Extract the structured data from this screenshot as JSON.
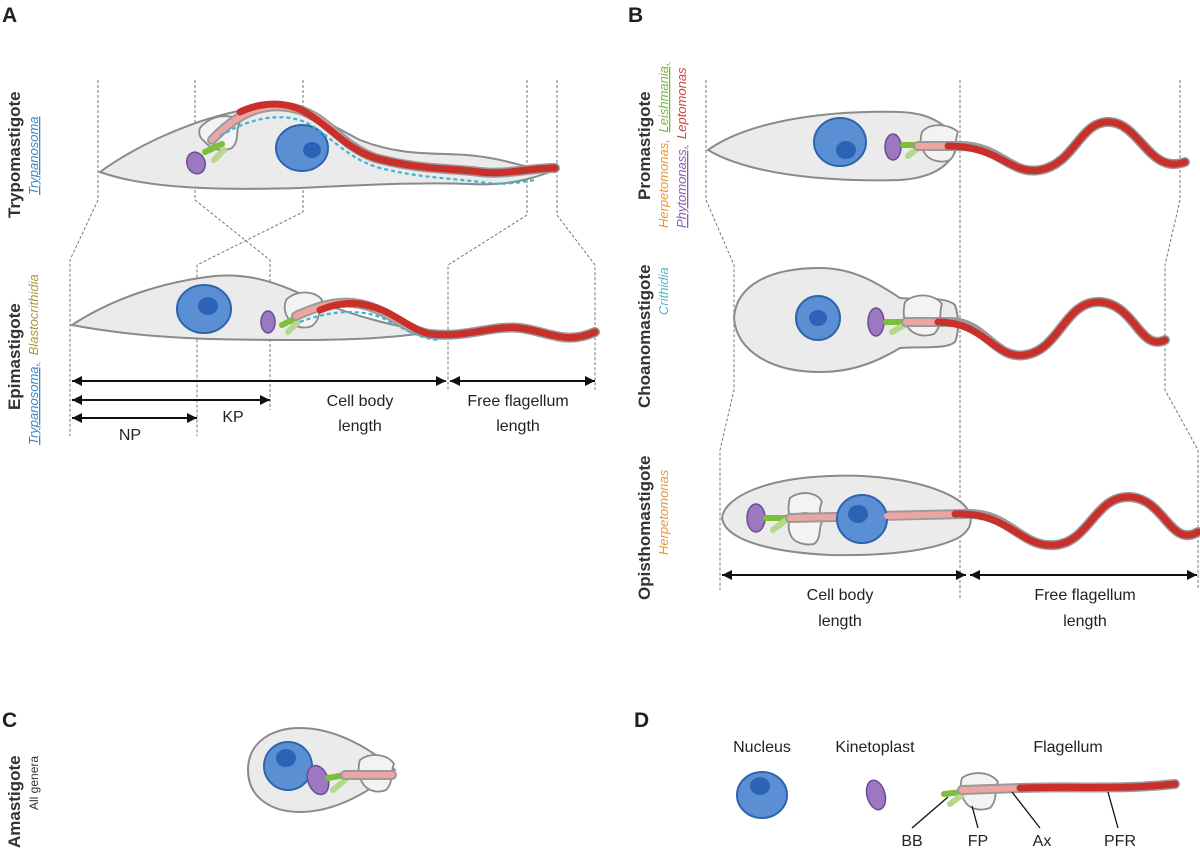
{
  "panels": {
    "a": "A",
    "b": "B",
    "c": "C",
    "d": "D"
  },
  "cells": {
    "trypomastigote": {
      "name": "Trypomastigote",
      "genus": "Trypanosoma"
    },
    "epimastigote": {
      "name": "Epimastigote",
      "genus1": "Trypanosoma,",
      "genus2": "Blastocrithidia"
    },
    "promastigote": {
      "name": "Promastigote",
      "line1_a": "Herpetomonas,",
      "line1_b": "Leishmania,",
      "line2_a": "Phytomonass,",
      "line2_b": "Leptomonas"
    },
    "choanomastigote": {
      "name": "Choanomastigote",
      "genus": "Crithidia"
    },
    "opisthomastigote": {
      "name": "Opisthomastigote",
      "genus": "Herpetomonas"
    },
    "amastigote": {
      "name": "Amastigote",
      "genus": "All genera"
    }
  },
  "measure_a": {
    "cell_body_1": "Cell body",
    "cell_body_2": "length",
    "free_flag_1": "Free flagellum",
    "free_flag_2": "length",
    "np": "NP",
    "kp": "KP"
  },
  "measure_b": {
    "cell_body_1": "Cell body",
    "cell_body_2": "length",
    "free_flag_1": "Free flagellum",
    "free_flag_2": "length"
  },
  "legend": {
    "nucleus": "Nucleus",
    "kinetoplast": "Kinetoplast",
    "flagellum": "Flagellum",
    "bb": "BB",
    "fp": "FP",
    "ax": "Ax",
    "pfr": "PFR"
  },
  "colors": {
    "genus_trypanosoma": "#3a86c8",
    "genus_blastocrithidia": "#a99a3c",
    "genus_herpetomonas": "#e8963a",
    "genus_leishmania": "#7ab640",
    "genus_phytomonas": "#8a5cb4",
    "genus_leptomonas": "#d0443a",
    "genus_crithidia": "#4cb8c8"
  }
}
